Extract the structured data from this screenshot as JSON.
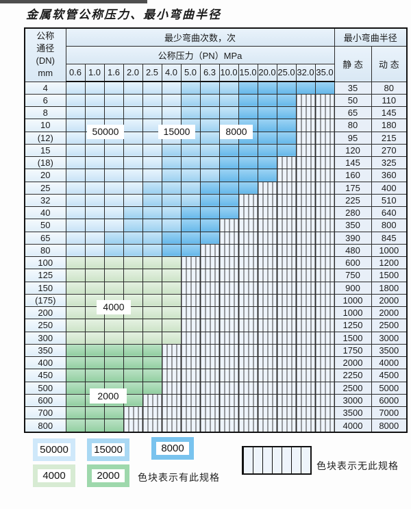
{
  "title": "金属软管公称压力、最小弯曲半径",
  "table": {
    "header": {
      "dn_label_lines": [
        "公称",
        "通径",
        "(DN)",
        "mm"
      ],
      "bend_cycles_label": "最少弯曲次数，次",
      "pressure_label": "公称压力（PN）MPa",
      "pressure_values": [
        "0.6",
        "1.0",
        "1.6",
        "2.0",
        "2.5",
        "4.0",
        "5.0",
        "6.3",
        "10.0",
        "15.0",
        "20.0",
        "25.0",
        "32.0",
        "35.0"
      ],
      "min_bend_radius_label": "最小弯曲半径",
      "static_label": "静 态",
      "dynamic_label": "动 态"
    },
    "rows": [
      {
        "dn": "4",
        "static": "35",
        "dynamic": "80",
        "zones": [
          [
            "z50000",
            6
          ],
          [
            "z15000",
            3
          ],
          [
            "z8000",
            5
          ]
        ]
      },
      {
        "dn": "6",
        "static": "50",
        "dynamic": "110",
        "zones": [
          [
            "z50000",
            6
          ],
          [
            "z15000",
            3
          ],
          [
            "z8000",
            3
          ]
        ]
      },
      {
        "dn": "8",
        "static": "65",
        "dynamic": "145",
        "zones": [
          [
            "z50000",
            6
          ],
          [
            "z15000",
            3
          ],
          [
            "z8000",
            3
          ]
        ]
      },
      {
        "dn": "10",
        "static": "80",
        "dynamic": "180",
        "zones": [
          [
            "z50000",
            6
          ],
          [
            "z15000",
            3
          ],
          [
            "z8000",
            3
          ]
        ]
      },
      {
        "dn": "(12)",
        "static": "95",
        "dynamic": "215",
        "zones": [
          [
            "z50000",
            6
          ],
          [
            "z15000",
            3
          ],
          [
            "z8000",
            3
          ]
        ]
      },
      {
        "dn": "15",
        "static": "120",
        "dynamic": "270",
        "zones": [
          [
            "z50000",
            5
          ],
          [
            "z15000",
            3
          ],
          [
            "z8000",
            4
          ]
        ]
      },
      {
        "dn": "(18)",
        "static": "145",
        "dynamic": "325",
        "zones": [
          [
            "z50000",
            5
          ],
          [
            "z15000",
            3
          ],
          [
            "z8000",
            3
          ]
        ]
      },
      {
        "dn": "20",
        "static": "160",
        "dynamic": "360",
        "zones": [
          [
            "z50000",
            5
          ],
          [
            "z15000",
            3
          ],
          [
            "z8000",
            3
          ]
        ]
      },
      {
        "dn": "25",
        "static": "175",
        "dynamic": "400",
        "zones": [
          [
            "z50000",
            4
          ],
          [
            "z15000",
            3
          ],
          [
            "z8000",
            3
          ]
        ]
      },
      {
        "dn": "32",
        "static": "225",
        "dynamic": "510",
        "zones": [
          [
            "z50000",
            4
          ],
          [
            "z15000",
            3
          ],
          [
            "z8000",
            2
          ]
        ]
      },
      {
        "dn": "40",
        "static": "280",
        "dynamic": "640",
        "zones": [
          [
            "z50000",
            3
          ],
          [
            "z15000",
            3
          ],
          [
            "z8000",
            3
          ]
        ]
      },
      {
        "dn": "50",
        "static": "350",
        "dynamic": "800",
        "zones": [
          [
            "z50000",
            3
          ],
          [
            "z15000",
            3
          ],
          [
            "z8000",
            2
          ]
        ]
      },
      {
        "dn": "65",
        "static": "390",
        "dynamic": "845",
        "zones": [
          [
            "z50000",
            2
          ],
          [
            "z15000",
            3
          ],
          [
            "z8000",
            3
          ]
        ]
      },
      {
        "dn": "80",
        "static": "480",
        "dynamic": "1000",
        "zones": [
          [
            "z50000",
            2
          ],
          [
            "z15000",
            3
          ],
          [
            "z8000",
            2
          ]
        ]
      },
      {
        "dn": "100",
        "static": "600",
        "dynamic": "1200",
        "zones": [
          [
            "z4000",
            6
          ]
        ]
      },
      {
        "dn": "125",
        "static": "750",
        "dynamic": "1500",
        "zones": [
          [
            "z4000",
            6
          ]
        ]
      },
      {
        "dn": "150",
        "static": "900",
        "dynamic": "1800",
        "zones": [
          [
            "z4000",
            6
          ]
        ]
      },
      {
        "dn": "(175)",
        "static": "1000",
        "dynamic": "2000",
        "zones": [
          [
            "z4000",
            6
          ]
        ]
      },
      {
        "dn": "200",
        "static": "1000",
        "dynamic": "2000",
        "zones": [
          [
            "z4000",
            6
          ]
        ]
      },
      {
        "dn": "250",
        "static": "1250",
        "dynamic": "2500",
        "zones": [
          [
            "z4000",
            6
          ]
        ]
      },
      {
        "dn": "300",
        "static": "1500",
        "dynamic": "3000",
        "zones": [
          [
            "z4000",
            6
          ]
        ]
      },
      {
        "dn": "350",
        "static": "1750",
        "dynamic": "3500",
        "zones": [
          [
            "z2000",
            5
          ]
        ]
      },
      {
        "dn": "400",
        "static": "2000",
        "dynamic": "4000",
        "zones": [
          [
            "z2000",
            5
          ]
        ]
      },
      {
        "dn": "450",
        "static": "2250",
        "dynamic": "4500",
        "zones": [
          [
            "z2000",
            5
          ]
        ]
      },
      {
        "dn": "500",
        "static": "2500",
        "dynamic": "5000",
        "zones": [
          [
            "z2000",
            5
          ]
        ]
      },
      {
        "dn": "600",
        "static": "3000",
        "dynamic": "6000",
        "zones": [
          [
            "z2000",
            4
          ]
        ]
      },
      {
        "dn": "700",
        "static": "3500",
        "dynamic": "7000",
        "zones": [
          [
            "z2000",
            3
          ]
        ]
      },
      {
        "dn": "800",
        "static": "4000",
        "dynamic": "8000",
        "zones": [
          [
            "z2000",
            3
          ]
        ]
      }
    ]
  },
  "zone_colors": {
    "z50000": {
      "top": "#e8f4fd",
      "bottom": "#c6e2f6",
      "legend": "#cfe8fa"
    },
    "z15000": {
      "top": "#c8e6f8",
      "bottom": "#9bd0f0",
      "legend": "#a9d8f3"
    },
    "z8000": {
      "top": "#9bd2f3",
      "bottom": "#66b8ea",
      "legend": "#79c3ee"
    },
    "z4000": {
      "top": "#e4f1e1",
      "bottom": "#cce3c7",
      "legend": "#d7ebd3"
    },
    "z2000": {
      "top": "#b9e1c3",
      "bottom": "#92cfa1",
      "legend": "#9ed8ac"
    },
    "hatch_line": "#3c3c3c"
  },
  "overlays": {
    "l50000": "50000",
    "l15000": "15000",
    "l8000": "8000",
    "l4000": "4000",
    "l2000": "2000"
  },
  "legend": {
    "swatches": [
      {
        "id": "sw-50000",
        "label": "50000",
        "zone": "z50000"
      },
      {
        "id": "sw-15000",
        "label": "15000",
        "zone": "z15000"
      },
      {
        "id": "sw-8000",
        "label": "8000",
        "zone": "z8000"
      },
      {
        "id": "sw-4000",
        "label": "4000",
        "zone": "z4000"
      },
      {
        "id": "sw-2000",
        "label": "2000",
        "zone": "z2000"
      }
    ],
    "has_spec_text": "色块表示有此规格",
    "no_spec_text": "色块表示无此规格"
  }
}
